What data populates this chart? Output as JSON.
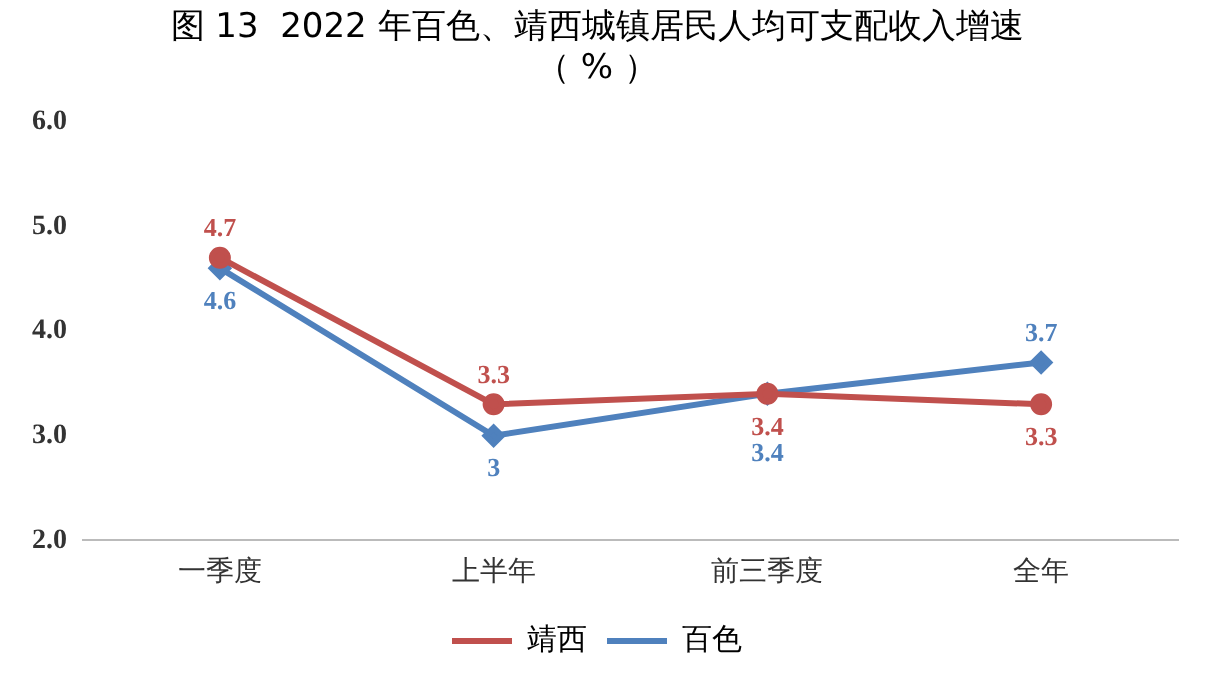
{
  "chart_data": {
    "type": "line",
    "title": [
      "图 13  2022 年百色、靖西城镇居民人均可支配收入增速",
      "（ % ）"
    ],
    "categories": [
      "一季度",
      "上半年",
      "前三季度",
      "全年"
    ],
    "series": [
      {
        "name": "靖西",
        "color": "#c0504d",
        "values": [
          4.7,
          3.3,
          3.4,
          3.3
        ],
        "marker": "circle"
      },
      {
        "name": "百色",
        "color": "#4f81bd",
        "values": [
          4.6,
          3,
          3.4,
          3.7
        ],
        "marker": "diamond"
      }
    ],
    "ylim": [
      2,
      6
    ],
    "yticks": [
      {
        "value": 2,
        "label": "2.0"
      },
      {
        "value": 3,
        "label": "3.0"
      },
      {
        "value": 4,
        "label": "4.0"
      },
      {
        "value": 5,
        "label": "5.0"
      },
      {
        "value": 6,
        "label": "6.0"
      }
    ],
    "grid": false,
    "legend": "bottom",
    "data_labels": true
  }
}
